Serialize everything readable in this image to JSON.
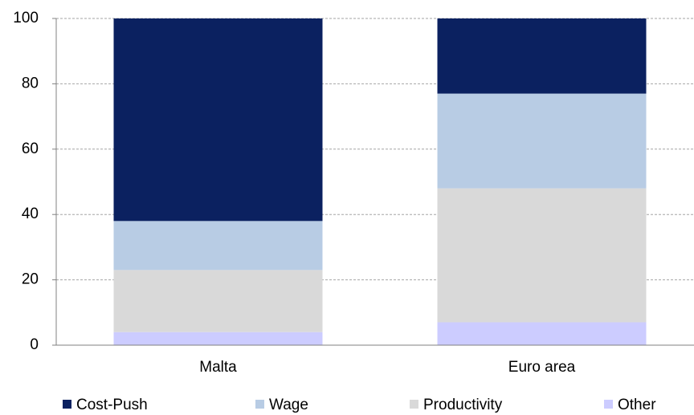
{
  "chart_data": {
    "type": "stacked-bar",
    "categories": [
      "Malta",
      "Euro area"
    ],
    "series": [
      {
        "name": "Other",
        "color": "#ccccff",
        "values": [
          4,
          7
        ]
      },
      {
        "name": "Productivity",
        "color": "#d9d9d9",
        "values": [
          19,
          41
        ]
      },
      {
        "name": "Wage",
        "color": "#b8cce4",
        "values": [
          15,
          29
        ]
      },
      {
        "name": "Cost-Push",
        "color": "#0b2160",
        "values": [
          62,
          23
        ]
      }
    ],
    "legend_order": [
      3,
      2,
      1,
      0
    ],
    "ylim": [
      0,
      100
    ],
    "yticks": [
      0,
      20,
      40,
      60,
      80,
      100
    ],
    "grid": true,
    "legend": "bottom"
  }
}
